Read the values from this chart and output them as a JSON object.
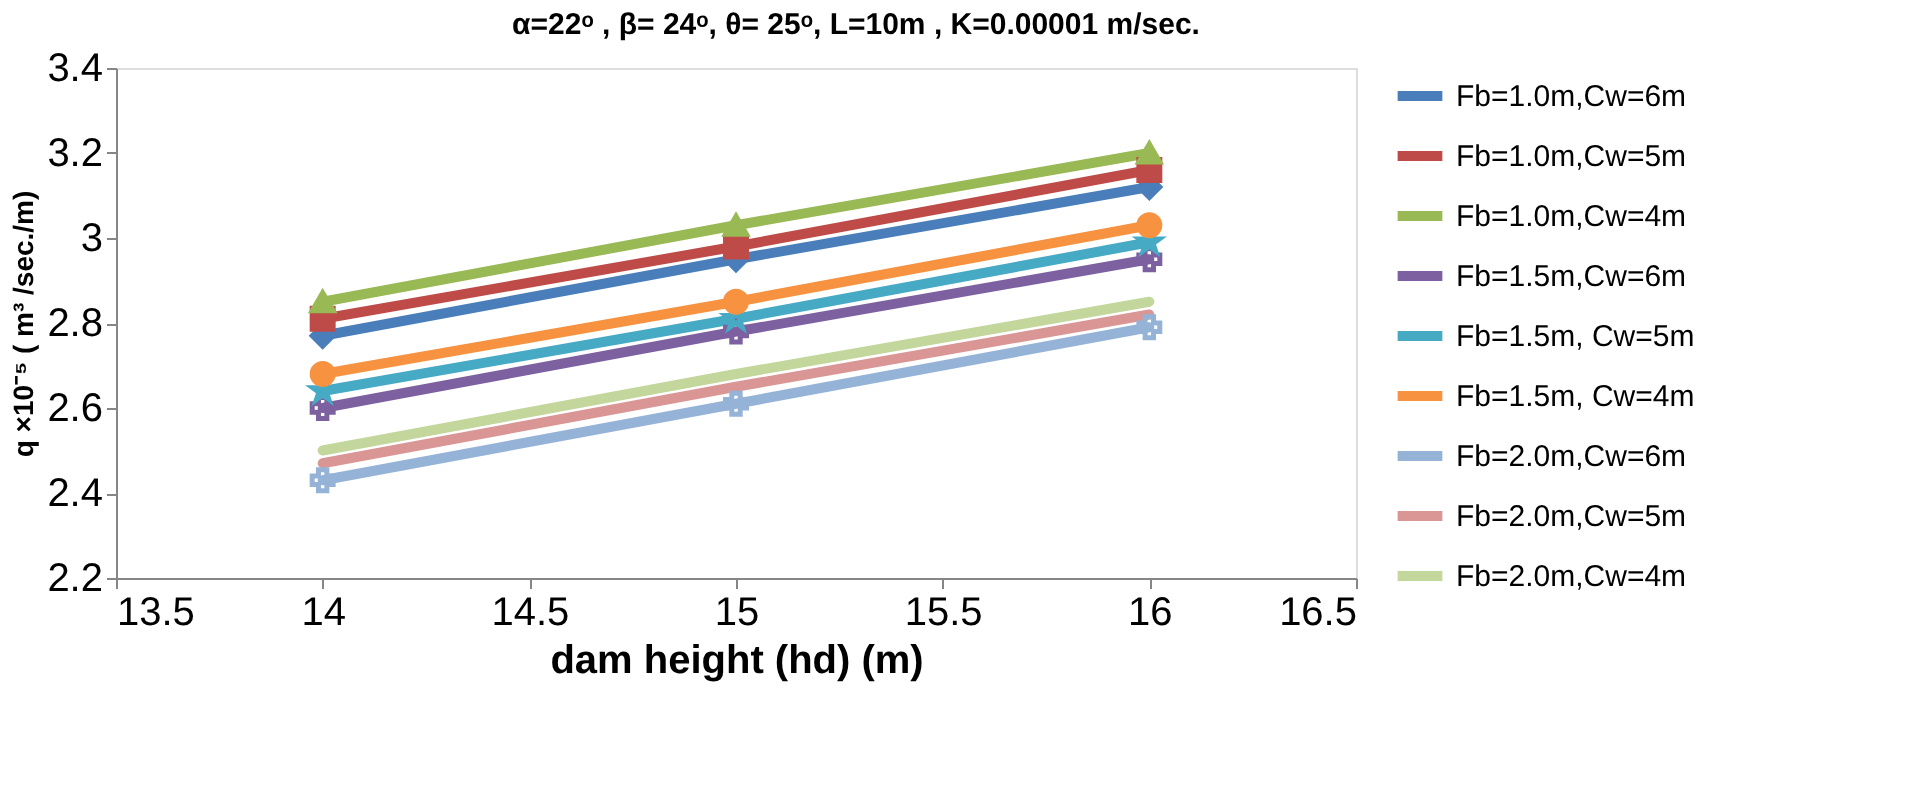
{
  "chart_data": {
    "type": "line",
    "title": "α=22ᵒ , β= 24ᵒ, θ= 25ᵒ, L=10m , K=0.00001 m/sec.",
    "xlabel": "dam height (hd) (m)",
    "ylabel": "q ×10⁻⁵ ( m³ /sec./m)",
    "x": [
      14,
      15,
      16
    ],
    "xlim": [
      13.5,
      16.5
    ],
    "xticks": [
      13.5,
      14,
      14.5,
      15,
      15.5,
      16,
      16.5
    ],
    "ylim": [
      2.2,
      3.4
    ],
    "yticks": [
      2.2,
      2.4,
      2.6,
      2.8,
      3,
      3.2,
      3.4
    ],
    "grid": false,
    "legend": "right",
    "line_style": "solid",
    "series": [
      {
        "name": "Fb=1.0m,Cw=6m",
        "color": "#4a7ebb",
        "marker": "diamond",
        "values": [
          2.77,
          2.95,
          3.12
        ]
      },
      {
        "name": "Fb=1.0m,Cw=5m",
        "color": "#be4b48",
        "marker": "square",
        "values": [
          2.81,
          2.98,
          3.16
        ]
      },
      {
        "name": "Fb=1.0m,Cw=4m",
        "color": "#98b954",
        "marker": "triangle",
        "values": [
          2.85,
          3.03,
          3.2
        ]
      },
      {
        "name": "Fb=1.5m,Cw=6m",
        "color": "#7d60a0",
        "marker": "cross",
        "values": [
          2.6,
          2.78,
          2.95
        ]
      },
      {
        "name": "Fb=1.5m, Cw=5m",
        "color": "#46aac5",
        "marker": "star",
        "values": [
          2.64,
          2.81,
          2.99
        ]
      },
      {
        "name": "Fb=1.5m, Cw=4m",
        "color": "#f69240",
        "marker": "circle",
        "values": [
          2.68,
          2.85,
          3.03
        ]
      },
      {
        "name": "Fb=2.0m,Cw=6m",
        "color": "#95b3d7",
        "marker": "cross",
        "values": [
          2.43,
          2.61,
          2.79
        ]
      },
      {
        "name": "Fb=2.0m,Cw=5m",
        "color": "#d99694",
        "marker": "none",
        "values": [
          2.47,
          2.65,
          2.82
        ]
      },
      {
        "name": "Fb=2.0m,Cw=4m",
        "color": "#c3d69b",
        "marker": "none",
        "values": [
          2.5,
          2.68,
          2.85
        ]
      }
    ]
  }
}
